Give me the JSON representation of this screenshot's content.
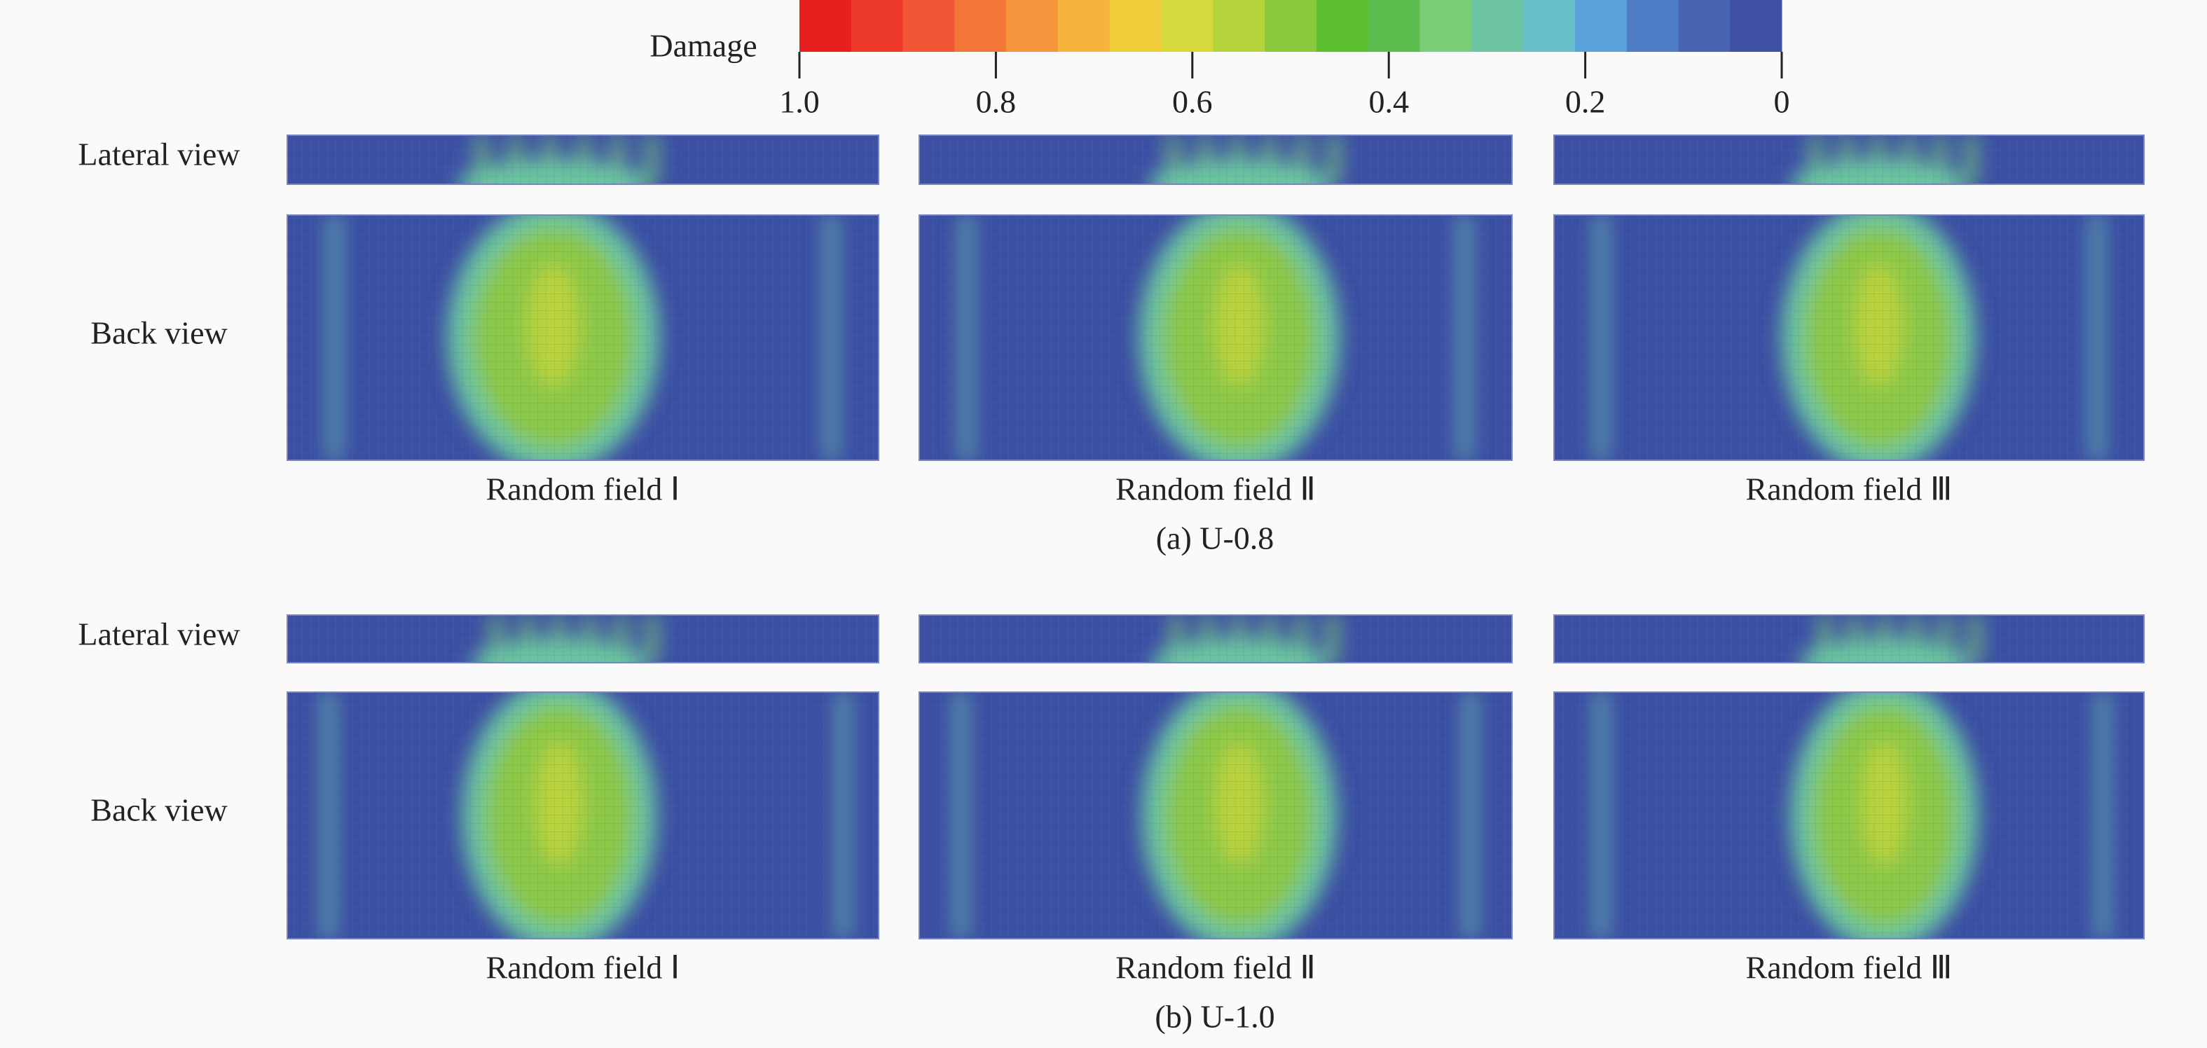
{
  "colorbar": {
    "label": "Damage",
    "lim": [
      1,
      0
    ],
    "ticks": [
      {
        "value": 1,
        "label": "1.0"
      },
      0.8,
      0.6,
      0.4,
      0.2,
      0
    ],
    "colors": [
      "#e6201f",
      "#ee3a2b",
      "#f25636",
      "#f37838",
      "#f5963c",
      "#f4b43e",
      "#efcc3a",
      "#d5d93b",
      "#b5d43b",
      "#8cc83d",
      "#5bbf2f",
      "#5cbd4f",
      "#7bcd78",
      "#6cc4a2",
      "#69bfca",
      "#5aa2dc",
      "#4e7dc6",
      "#4863b0",
      "#3f51a4"
    ]
  },
  "sections": [
    {
      "caption": "(a) U-0.8",
      "row_labels": [
        "Lateral view",
        "Back view"
      ],
      "columns": [
        "Random field Ⅰ",
        "Random field Ⅱ",
        "Random field Ⅲ"
      ]
    },
    {
      "caption": "(b) U-1.0",
      "row_labels": [
        "Lateral view",
        "Back view"
      ],
      "columns": [
        "Random field Ⅰ",
        "Random field Ⅱ",
        "Random field Ⅲ"
      ]
    }
  ]
}
